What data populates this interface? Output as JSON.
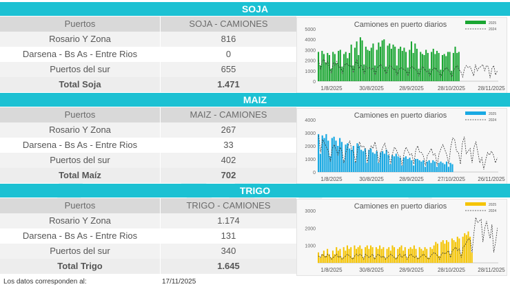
{
  "sections": [
    {
      "title": "SOJA",
      "header": {
        "col1": "Puertos",
        "col2": "SOJA - CAMIONES"
      },
      "rows": [
        {
          "port": "Rosario Y Zona",
          "value": "816"
        },
        {
          "port": "Darsena - Bs As - Entre Rios",
          "value": "0"
        },
        {
          "port": "Puertos del sur",
          "value": "655"
        }
      ],
      "total": {
        "label": "Total Soja",
        "value": "1.471"
      }
    },
    {
      "title": "MAIZ",
      "header": {
        "col1": "Puertos",
        "col2": "MAIZ - CAMIONES"
      },
      "rows": [
        {
          "port": "Rosario Y Zona",
          "value": "267"
        },
        {
          "port": "Darsena - Bs As - Entre Rios",
          "value": "33"
        },
        {
          "port": "Puertos del sur",
          "value": "402"
        }
      ],
      "total": {
        "label": "Total Maíz",
        "value": "702"
      }
    },
    {
      "title": "TRIGO",
      "header": {
        "col1": "Puertos",
        "col2": "TRIGO - CAMIONES"
      },
      "rows": [
        {
          "port": "Rosario Y Zona",
          "value": "1.174"
        },
        {
          "port": "Darsena - Bs As - Entre Rios",
          "value": "131"
        },
        {
          "port": "Puertos del sur",
          "value": "340"
        }
      ],
      "total": {
        "label": "Total Trigo",
        "value": "1.645"
      }
    }
  ],
  "footer": {
    "label": "Los datos corresponden al:",
    "date": "17/11/2025"
  },
  "colors": {
    "band": "#1cc1d3",
    "soja": "#1aa632",
    "maiz": "#19a9e3",
    "trigo": "#f5c400",
    "line2024": "#333333"
  },
  "chart_data": [
    {
      "type": "bar",
      "title": "Camiones en puerto diarios",
      "series": [
        {
          "name": "2025",
          "type": "bar",
          "color": "#1aa632",
          "values": [
            2800,
            1500,
            2900,
            2600,
            1800,
            2700,
            2500,
            1200,
            2800,
            2600,
            1700,
            2900,
            3000,
            1400,
            2600,
            2800,
            2200,
            2700,
            3500,
            1500,
            3200,
            3800,
            2500,
            4200,
            3900,
            1600,
            3300,
            3000,
            2900,
            3200,
            3600,
            1500,
            3000,
            3700,
            3300,
            3900,
            4000,
            1400,
            3400,
            3600,
            3100,
            3500,
            3300,
            1500,
            3100,
            3300,
            2900,
            3200,
            2800,
            1300,
            3000,
            3800,
            2700,
            3600,
            3100,
            1200,
            2800,
            2600,
            2500,
            3000,
            2700,
            1200,
            2800,
            3100,
            2600,
            2900,
            2700,
            1100,
            2500,
            2600,
            2400,
            2800,
            2800,
            1000,
            2700,
            3300,
            2700,
            2800
          ]
        },
        {
          "name": "2024",
          "type": "line",
          "color": "#333333",
          "values": [
            2000,
            1100,
            1900,
            2100,
            1600,
            1900,
            1200,
            800,
            1800,
            1500,
            1900,
            1300,
            1400,
            700,
            1500,
            1700,
            1600,
            1400,
            1500,
            800,
            1600,
            2100,
            1200,
            1500,
            1400,
            700,
            1400,
            1200,
            1300,
            1100,
            1300,
            600,
            1300,
            1400,
            1600,
            1300,
            1200,
            700,
            1200,
            1500,
            1400,
            1100,
            1200,
            600,
            1100,
            1300,
            1200,
            1100,
            1000,
            500,
            1200,
            1400,
            1300,
            1100,
            1000,
            500,
            1100,
            1400,
            1200,
            900,
            1000,
            500,
            1000,
            1200,
            1300,
            1000,
            900,
            400,
            900,
            1100,
            1300,
            1100,
            900,
            400,
            1000,
            1300,
            1500,
            1100,
            900,
            400,
            1200,
            1500,
            1300,
            1400,
            1000,
            500,
            1600,
            1000,
            1300,
            1400,
            1600,
            1000,
            1500,
            1400,
            300,
            1200,
            1500,
            600,
            1000
          ]
        }
      ],
      "x_ticks": [
        "1/8/2025",
        "30/8/2025",
        "28/9/2025",
        "28/10/2025",
        "28/11/2025"
      ],
      "ylim": [
        0,
        5000
      ],
      "y_ticks": [
        "0",
        "1000",
        "2000",
        "3000",
        "4000",
        "5000"
      ],
      "legend": "top-right"
    },
    {
      "type": "bar",
      "title": "Camiones en puerto diarios",
      "series": [
        {
          "name": "2025",
          "type": "bar",
          "color": "#19a9e3",
          "values": [
            2900,
            1400,
            2800,
            2600,
            2900,
            2400,
            1200,
            2600,
            2700,
            2400,
            2000,
            2600,
            2300,
            900,
            2100,
            2200,
            1800,
            1700,
            2000,
            800,
            2200,
            2000,
            1700,
            1600,
            1800,
            700,
            1700,
            1800,
            1500,
            1400,
            1600,
            700,
            1500,
            1600,
            1400,
            1700,
            1300,
            600,
            1300,
            1200,
            1400,
            1200,
            1100,
            500,
            1100,
            1200,
            1000,
            1100,
            900,
            500,
            1000,
            1000,
            900,
            800,
            900,
            400,
            800,
            900,
            700,
            900,
            800,
            400,
            700,
            800,
            700,
            600,
            800,
            400,
            700,
            600
          ]
        },
        {
          "name": "2024",
          "type": "line",
          "color": "#333333",
          "values": [
            2800,
            1500,
            2500,
            2200,
            1900,
            1600,
            800,
            1800,
            2100,
            1700,
            1300,
            1900,
            1600,
            700,
            1500,
            1900,
            2400,
            1700,
            1500,
            700,
            1700,
            2300,
            1900,
            2000,
            1800,
            700,
            1600,
            2000,
            1800,
            2300,
            1600,
            700,
            1500,
            1900,
            2200,
            1600,
            1500,
            600,
            1400,
            1900,
            1700,
            1300,
            1200,
            500,
            1500,
            1900,
            1600,
            1300,
            1400,
            600,
            1700,
            2000,
            1500,
            1500,
            1200,
            500,
            1300,
            1500,
            1800,
            1300,
            1400,
            500,
            1400,
            1800,
            2100,
            1700,
            1300,
            600,
            1900,
            2600,
            2500,
            1600,
            1500,
            600,
            2200,
            2700,
            1400,
            1600,
            1800,
            700,
            1900,
            2300,
            1500,
            700,
            1100,
            200,
            900,
            1500,
            1300,
            1600,
            1300,
            700,
            1100
          ]
        }
      ],
      "x_ticks": [
        "1/8/2025",
        "30/8/2025",
        "28/9/2025",
        "27/10/2025",
        "26/11/2025"
      ],
      "ylim": [
        0,
        4000
      ],
      "y_ticks": [
        "0",
        "1000",
        "2000",
        "3000",
        "4000"
      ],
      "legend": "top-right"
    },
    {
      "type": "bar",
      "title": "Camiones en puerto diarios",
      "series": [
        {
          "name": "2025",
          "type": "bar",
          "color": "#f5c400",
          "values": [
            600,
            300,
            500,
            700,
            400,
            800,
            500,
            300,
            700,
            500,
            900,
            700,
            800,
            300,
            900,
            700,
            1000,
            800,
            900,
            300,
            1000,
            800,
            900,
            1000,
            800,
            300,
            900,
            1000,
            800,
            1000,
            900,
            300,
            900,
            800,
            1000,
            800,
            900,
            300,
            800,
            900,
            700,
            1000,
            900,
            300,
            800,
            900,
            1000,
            700,
            900,
            300,
            800,
            900,
            800,
            1000,
            800,
            300,
            900,
            800,
            700,
            900,
            800,
            300,
            900,
            800,
            1000,
            1200,
            1100,
            400,
            1200,
            1300,
            1100,
            1300,
            1200,
            500,
            1400,
            1300,
            1200,
            1500,
            1400,
            500,
            1500,
            1700,
            1600,
            1800,
            1500,
            600
          ]
        },
        {
          "name": "2024",
          "type": "line",
          "color": "#333333",
          "values": [
            400,
            300,
            500,
            400,
            300,
            500,
            400,
            200,
            300,
            400,
            500,
            300,
            400,
            200,
            300,
            400,
            500,
            400,
            300,
            200,
            400,
            500,
            400,
            500,
            400,
            200,
            500,
            400,
            300,
            400,
            500,
            200,
            400,
            500,
            400,
            300,
            400,
            200,
            300,
            400,
            500,
            400,
            300,
            200,
            400,
            500,
            300,
            400,
            500,
            200,
            400,
            500,
            400,
            300,
            400,
            200,
            300,
            400,
            500,
            400,
            300,
            200,
            400,
            500,
            600,
            500,
            400,
            200,
            500,
            600,
            500,
            600,
            700,
            300,
            700,
            800,
            900,
            700,
            800,
            300,
            900,
            1000,
            1200,
            1400,
            1300,
            600,
            1700,
            2600,
            2300,
            2400,
            2500,
            1200,
            2000,
            2400,
            1800,
            1400,
            2200,
            600,
            1200,
            2000
          ]
        }
      ],
      "x_ticks": [
        "1/8/2025",
        "30/8/2025",
        "28/9/2025",
        "28/10/2025",
        "28/11/2025"
      ],
      "ylim": [
        0,
        3000
      ],
      "y_ticks": [
        "1000",
        "2000",
        "3000"
      ],
      "legend": "top-right"
    }
  ]
}
